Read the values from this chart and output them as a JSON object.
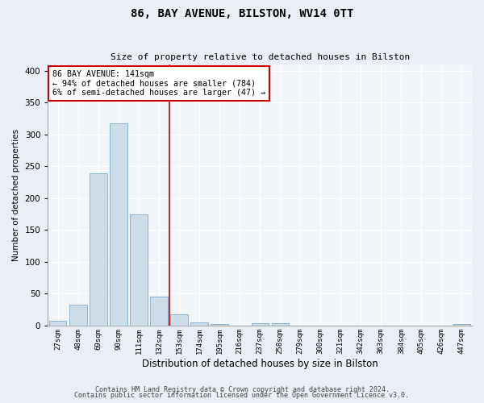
{
  "title1": "86, BAY AVENUE, BILSTON, WV14 0TT",
  "title2": "Size of property relative to detached houses in Bilston",
  "xlabel": "Distribution of detached houses by size in Bilston",
  "ylabel": "Number of detached properties",
  "bar_labels": [
    "27sqm",
    "48sqm",
    "69sqm",
    "90sqm",
    "111sqm",
    "132sqm",
    "153sqm",
    "174sqm",
    "195sqm",
    "216sqm",
    "237sqm",
    "258sqm",
    "279sqm",
    "300sqm",
    "321sqm",
    "342sqm",
    "363sqm",
    "384sqm",
    "405sqm",
    "426sqm",
    "447sqm"
  ],
  "bar_values": [
    7,
    33,
    239,
    318,
    174,
    46,
    18,
    5,
    3,
    0,
    4,
    4,
    0,
    0,
    0,
    0,
    0,
    0,
    0,
    0,
    2
  ],
  "bar_color": "#ccdce8",
  "bar_edge_color": "#7aabcc",
  "vline_x": 5.5,
  "vline_color": "#cc0000",
  "annotation_text": "86 BAY AVENUE: 141sqm\n← 94% of detached houses are smaller (784)\n6% of semi-detached houses are larger (47) →",
  "annotation_box_color": "#ffffff",
  "annotation_box_edge": "#cc0000",
  "ylim": [
    0,
    410
  ],
  "yticks": [
    0,
    50,
    100,
    150,
    200,
    250,
    300,
    350,
    400
  ],
  "background_color": "#eaeff5",
  "plot_background": "#f2f5f9",
  "footer1": "Contains HM Land Registry data © Crown copyright and database right 2024.",
  "footer2": "Contains public sector information licensed under the Open Government Licence v3.0."
}
